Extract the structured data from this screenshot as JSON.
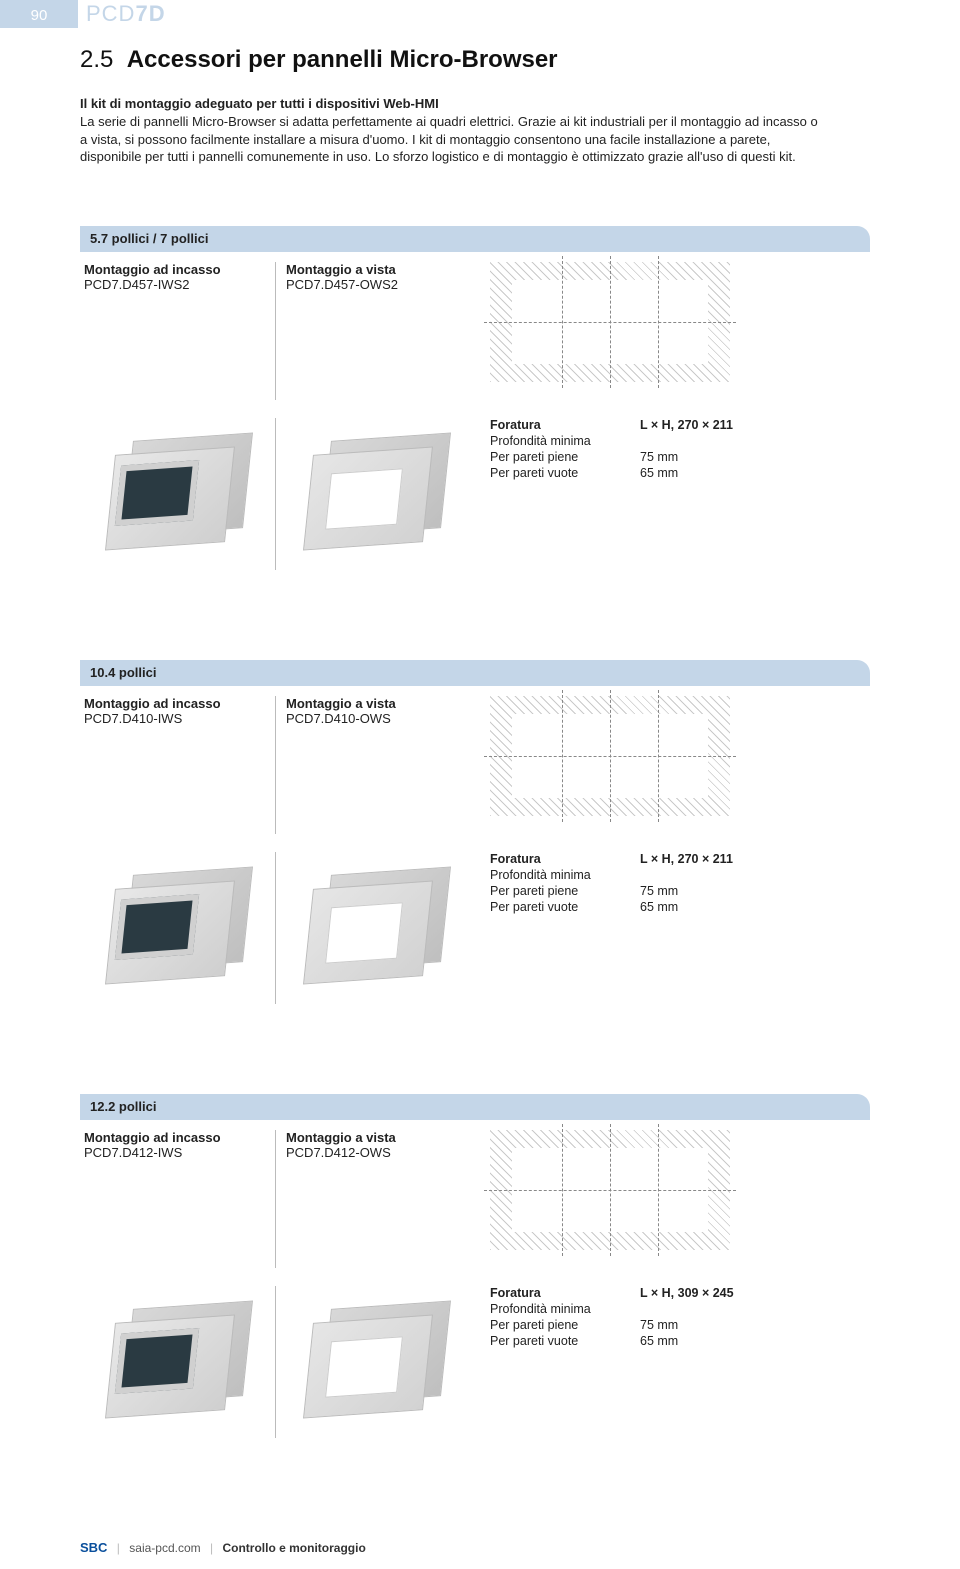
{
  "page_number": "90",
  "header_code_prefix": "PCD",
  "header_code_suffix": "7D",
  "section_number": "2.5",
  "title": "Accessori per pannelli Micro-Browser",
  "intro_bold": "Il kit di montaggio adeguato per tutti i dispositivi Web-HMI",
  "intro": "La serie di pannelli Micro-Browser si adatta perfettamente ai quadri elettrici. Grazie ai kit industriali per il montaggio ad incasso o a vista, si possono facilmente installare a misura d'uomo. I kit di montaggio consentono una facile installazione a parete, disponibile per tutti i pannelli comunemente in uso. Lo sforzo logistico e di montaggio è ottimizzato grazie all'uso di questi kit.",
  "spec_labels": {
    "foratura": "Foratura",
    "prof_min": "Profondità minima",
    "pareti_piene": "Per pareti piene",
    "pareti_vuote": "Per pareti vuote"
  },
  "mount_incasso_label": "Montaggio ad incasso",
  "mount_vista_label": "Montaggio a vista",
  "sections": [
    {
      "title": "5.7 pollici  /  7 pollici",
      "incasso_code": "PCD7.D457-IWS2",
      "vista_code": "PCD7.D457-OWS2",
      "foratura": "L × H, 270 × 211",
      "piene": "75 mm",
      "vuote": "65 mm"
    },
    {
      "title": "10.4 pollici",
      "incasso_code": "PCD7.D410-IWS",
      "vista_code": "PCD7.D410-OWS",
      "foratura": "L × H, 270 × 211",
      "piene": "75 mm",
      "vuote": "65 mm"
    },
    {
      "title": "12.2 pollici",
      "incasso_code": "PCD7.D412-IWS",
      "vista_code": "PCD7.D412-OWS",
      "foratura": "L × H, 309 × 245",
      "piene": "75 mm",
      "vuote": "65 mm"
    }
  ],
  "footer": {
    "brand": "SBC",
    "url": "saia-pcd.com",
    "trail": "Controllo e monitoraggio"
  }
}
